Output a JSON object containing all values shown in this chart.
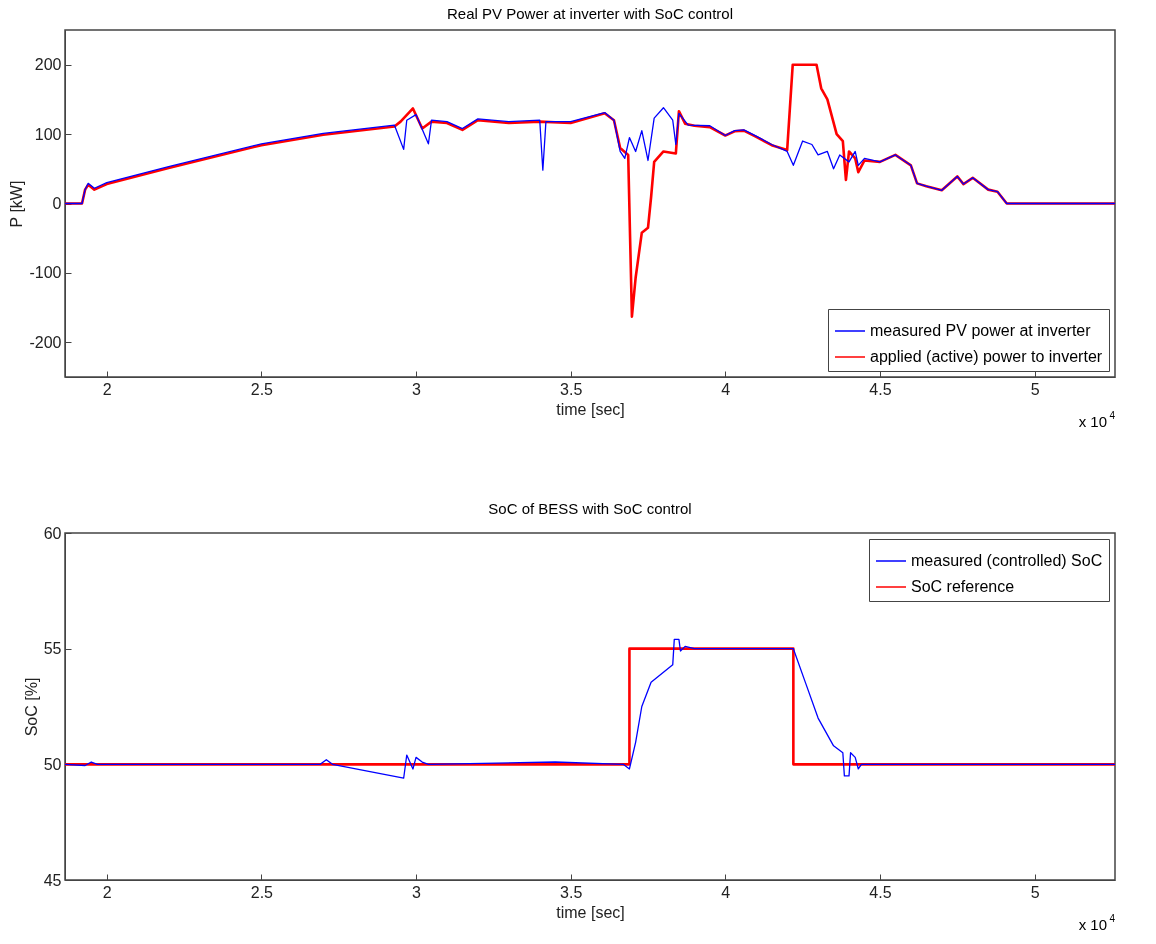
{
  "chart_data": [
    {
      "type": "line",
      "title": "Real PV Power at inverter with SoC control",
      "xlabel": "time [sec]",
      "ylabel": "P [kW]",
      "annotations": [
        "x 10$^{4}$"
      ],
      "xlim": [
        1.865,
        5.26
      ],
      "xticks": [
        2,
        2.5,
        3,
        3.5,
        4,
        4.5,
        5
      ],
      "ylim": [
        -250,
        250
      ],
      "yticks": [
        -200,
        -100,
        0,
        100,
        200
      ],
      "grid": false,
      "legend": "bottom right",
      "series": [
        {
          "name": "measured PV power at inverter",
          "color": "#0000ff",
          "x": [
            1.865,
            1.92,
            1.93,
            1.94,
            1.96,
            2.0,
            2.2,
            2.5,
            2.7,
            2.93,
            2.96,
            2.97,
            3.0,
            3.04,
            3.05,
            3.1,
            3.15,
            3.2,
            3.3,
            3.4,
            3.41,
            3.42,
            3.5,
            3.61,
            3.64,
            3.66,
            3.675,
            3.69,
            3.71,
            3.73,
            3.75,
            3.77,
            3.8,
            3.83,
            3.84,
            3.85,
            3.88,
            3.95,
            4.0,
            4.03,
            4.06,
            4.1,
            4.15,
            4.2,
            4.22,
            4.25,
            4.28,
            4.3,
            4.33,
            4.35,
            4.37,
            4.4,
            4.42,
            4.43,
            4.45,
            4.5,
            4.55,
            4.6,
            4.62,
            4.65,
            4.7,
            4.75,
            4.77,
            4.8,
            4.85,
            4.88,
            4.91,
            5.26
          ],
          "values": [
            0,
            0,
            20,
            29,
            22,
            30,
            53,
            86,
            101,
            113,
            78,
            120,
            128,
            86,
            120,
            118,
            108,
            122,
            118,
            120,
            48,
            118,
            118,
            131,
            120,
            75,
            65,
            95,
            75,
            105,
            62,
            123,
            138,
            120,
            85,
            130,
            113,
            112,
            98,
            105,
            106,
            97,
            85,
            75,
            55,
            90,
            85,
            70,
            75,
            50,
            70,
            60,
            75,
            55,
            65,
            60,
            70,
            55,
            29,
            25,
            19,
            39,
            28,
            37,
            20,
            17,
            0,
            0
          ]
        },
        {
          "name": "applied (active) power to inverter",
          "color": "#ff0000",
          "x": [
            1.865,
            1.92,
            1.93,
            1.94,
            1.96,
            2.0,
            2.2,
            2.5,
            2.7,
            2.93,
            2.95,
            2.99,
            3.02,
            3.05,
            3.1,
            3.15,
            3.2,
            3.3,
            3.4,
            3.5,
            3.61,
            3.64,
            3.66,
            3.686,
            3.698,
            3.71,
            3.73,
            3.75,
            3.76,
            3.77,
            3.8,
            3.84,
            3.85,
            3.87,
            3.9,
            3.95,
            4.0,
            4.03,
            4.06,
            4.1,
            4.15,
            4.2,
            4.218,
            4.295,
            4.31,
            4.33,
            4.36,
            4.38,
            4.39,
            4.4,
            4.42,
            4.43,
            4.45,
            4.5,
            4.55,
            4.6,
            4.62,
            4.65,
            4.7,
            4.75,
            4.77,
            4.8,
            4.85,
            4.88,
            4.91,
            5.26
          ],
          "values": [
            0,
            0,
            20,
            27,
            20,
            28,
            51,
            84,
            99,
            111,
            118,
            137,
            108,
            118,
            116,
            106,
            120,
            116,
            118,
            116,
            130,
            120,
            80,
            70,
            -163,
            -107,
            -42,
            -35,
            9,
            60,
            75,
            72,
            133,
            115,
            112,
            110,
            98,
            104,
            105,
            96,
            84,
            77,
            200,
            200,
            166,
            150,
            100,
            90,
            34,
            75,
            65,
            45,
            62,
            60,
            70,
            55,
            29,
            25,
            19,
            39,
            28,
            37,
            20,
            17,
            0,
            0
          ]
        }
      ]
    },
    {
      "type": "line",
      "title": "SoC of BESS with SoC control",
      "xlabel": "time [sec]",
      "ylabel": "SoC [%]",
      "annotations": [
        "x 10$^{4}$"
      ],
      "xlim": [
        1.865,
        5.26
      ],
      "xticks": [
        2,
        2.5,
        3,
        3.5,
        4,
        4.5,
        5
      ],
      "ylim": [
        45,
        60
      ],
      "yticks": [
        45,
        50,
        55,
        60
      ],
      "grid": false,
      "legend": "top right",
      "series": [
        {
          "name": "measured (controlled) SoC",
          "color": "#0000ff",
          "x": [
            1.865,
            1.93,
            1.95,
            1.97,
            2.69,
            2.71,
            2.73,
            2.96,
            2.97,
            2.99,
            3.0,
            3.02,
            3.04,
            3.45,
            3.67,
            3.69,
            3.71,
            3.73,
            3.76,
            3.83,
            3.835,
            3.85,
            3.855,
            3.87,
            3.9,
            4.22,
            4.26,
            4.3,
            4.35,
            4.38,
            4.385,
            4.4,
            4.405,
            4.42,
            4.43,
            4.44,
            5.26
          ],
          "values": [
            50,
            49.95,
            50.1,
            50,
            50,
            50.2,
            50,
            49.4,
            50.4,
            49.8,
            50.3,
            50.1,
            50,
            50.1,
            50,
            49.8,
            50.95,
            52.5,
            53.55,
            54.3,
            55.4,
            55.4,
            54.9,
            55.1,
            55,
            55,
            53.5,
            52,
            50.8,
            50.5,
            49.5,
            49.5,
            50.5,
            50.3,
            49.8,
            50,
            50
          ]
        },
        {
          "name": "SoC reference",
          "type": "step",
          "color": "#ff0000",
          "x": [
            1.865,
            3.69,
            4.22,
            5.26
          ],
          "values": [
            50,
            55,
            50,
            50
          ]
        }
      ]
    }
  ]
}
